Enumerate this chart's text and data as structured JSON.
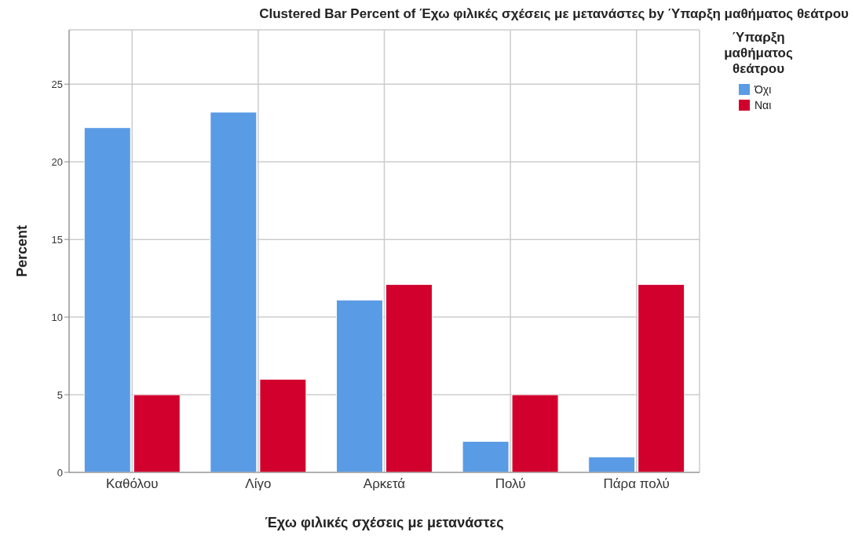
{
  "chart_data": {
    "type": "bar",
    "title": "Clustered Bar Percent of Έχω φιλικές σχέσεις με μετανάστες by Ύπαρξη μαθήματος θεάτρου",
    "xlabel": "Έχω φιλικές σχέσεις με μετανάστες",
    "ylabel": "Percent",
    "legend_title": "Ύπαρξη μαθήματος θεάτρου",
    "categories": [
      "Καθόλου",
      "Λίγο",
      "Αρκετά",
      "Πολύ",
      "Πάρα πολύ"
    ],
    "series": [
      {
        "name": "Όχι",
        "color": "#5a9be6",
        "values": [
          22.2,
          23.2,
          11.1,
          2.0,
          1.0
        ]
      },
      {
        "name": "Ναι",
        "color": "#d2002d",
        "values": [
          5.0,
          6.0,
          12.1,
          5.0,
          12.1
        ]
      }
    ],
    "ylim": [
      0,
      28.5
    ],
    "yticks": [
      0,
      5,
      10,
      15,
      20,
      25
    ],
    "grid": true,
    "legend": "top right"
  }
}
